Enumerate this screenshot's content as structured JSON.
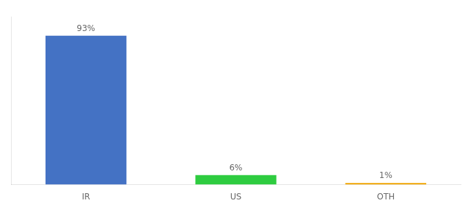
{
  "chart_data": {
    "type": "bar",
    "categories": [
      "IR",
      "US",
      "OTH"
    ],
    "values": [
      93,
      6,
      1
    ],
    "value_labels": [
      "93%",
      "6%",
      "1%"
    ],
    "colors": [
      "#4472c4",
      "#2ecc40",
      "#f0a500"
    ],
    "ylim": [
      0,
      105
    ],
    "yticks": [],
    "grid": false,
    "data_labels": true,
    "tick_labels": "x"
  }
}
